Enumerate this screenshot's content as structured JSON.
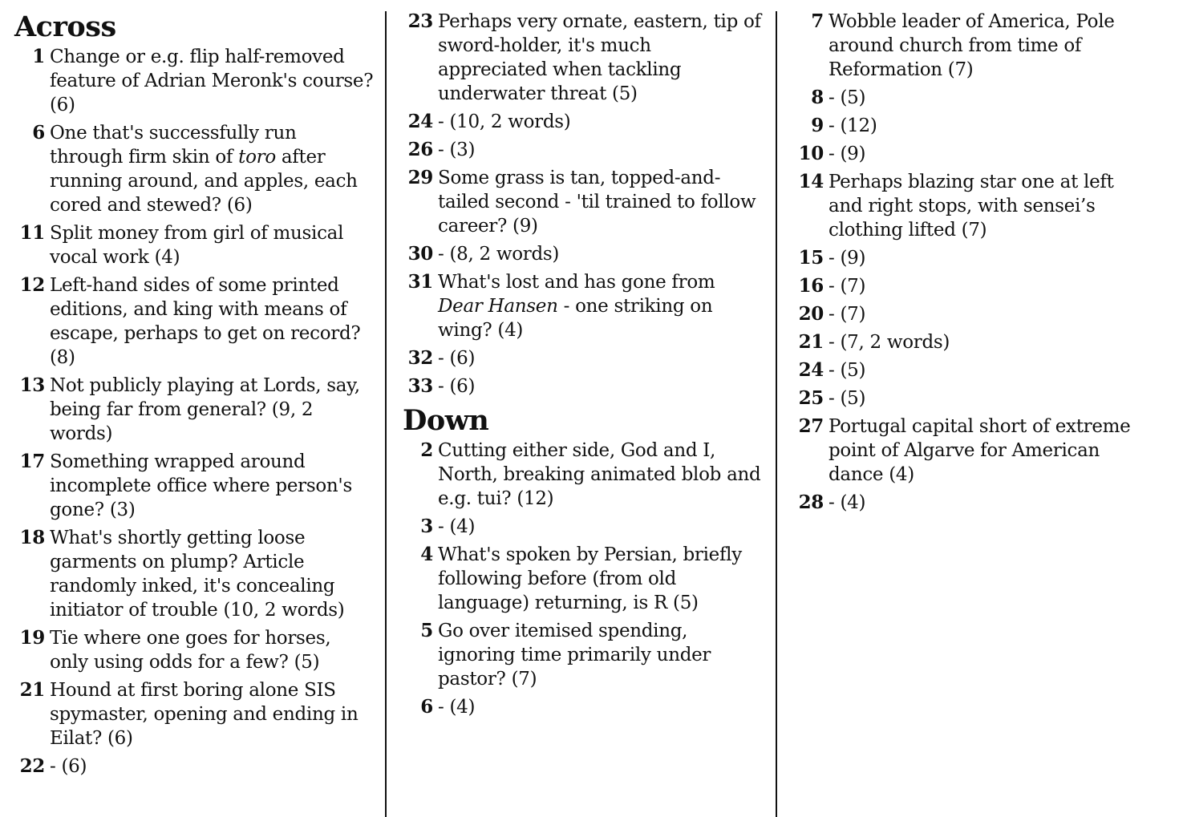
{
  "across": {
    "heading": "Across",
    "clues": [
      {
        "num": "1",
        "parts": [
          {
            "t": "Change or e.g. flip half-removed feature of Adrian Meronk's course? (6)"
          }
        ]
      },
      {
        "num": "6",
        "parts": [
          {
            "t": "One that's successfully run through firm skin of "
          },
          {
            "t": "toro",
            "i": true
          },
          {
            "t": " after running around, and apples, each cored and stewed? (6)"
          }
        ]
      },
      {
        "num": "11",
        "parts": [
          {
            "t": "Split money from girl of musical vocal work (4)"
          }
        ]
      },
      {
        "num": "12",
        "parts": [
          {
            "t": "Left-hand sides of some printed editions, and king with means of escape, perhaps to get on record? (8)"
          }
        ]
      },
      {
        "num": "13",
        "parts": [
          {
            "t": "Not publicly playing at Lords, say, being far from general? (9, 2 words)"
          }
        ]
      },
      {
        "num": "17",
        "parts": [
          {
            "t": "Something wrapped around incomplete office where person's gone? (3)"
          }
        ]
      },
      {
        "num": "18",
        "parts": [
          {
            "t": "What's shortly getting loose garments on plump? Article randomly inked, it's concealing initiator of trouble (10, 2 words)"
          }
        ]
      },
      {
        "num": "19",
        "parts": [
          {
            "t": "Tie where one goes for horses, only using odds for a few? (5)"
          }
        ]
      },
      {
        "num": "21",
        "parts": [
          {
            "t": "Hound at first boring alone SIS spymaster, opening and ending in Eilat? (6)"
          }
        ]
      },
      {
        "num": "22",
        "parts": [
          {
            "t": "- (6)"
          }
        ]
      },
      {
        "num": "23",
        "parts": [
          {
            "t": "Perhaps very ornate, eastern, tip of sword-holder, it's much appreciated when tackling underwater threat (5)"
          }
        ]
      },
      {
        "num": "24",
        "parts": [
          {
            "t": "- (10, 2 words)"
          }
        ]
      },
      {
        "num": "26",
        "parts": [
          {
            "t": "- (3)"
          }
        ]
      },
      {
        "num": "29",
        "parts": [
          {
            "t": "Some grass is tan, topped-and-tailed second - 'til trained to follow career? (9)"
          }
        ]
      },
      {
        "num": "30",
        "parts": [
          {
            "t": "- (8, 2 words)"
          }
        ]
      },
      {
        "num": "31",
        "parts": [
          {
            "t": "What's lost and has gone from "
          },
          {
            "t": "Dear Hansen",
            "i": true
          },
          {
            "t": " - one striking on wing? (4)"
          }
        ]
      },
      {
        "num": "32",
        "parts": [
          {
            "t": "- (6)"
          }
        ]
      },
      {
        "num": "33",
        "parts": [
          {
            "t": "- (6)"
          }
        ]
      }
    ]
  },
  "down": {
    "heading": "Down",
    "clues": [
      {
        "num": "2",
        "parts": [
          {
            "t": "Cutting either side, God and I, North, breaking animated blob and e.g. tui? (12)"
          }
        ]
      },
      {
        "num": "3",
        "parts": [
          {
            "t": "- (4)"
          }
        ]
      },
      {
        "num": "4",
        "parts": [
          {
            "t": "What's spoken by Persian, briefly following before (from old language) returning, is R (5)"
          }
        ]
      },
      {
        "num": "5",
        "parts": [
          {
            "t": "Go over itemised spending, ignoring time primarily under pastor? (7)"
          }
        ]
      },
      {
        "num": "6",
        "parts": [
          {
            "t": "- (4)"
          }
        ]
      },
      {
        "num": "7",
        "parts": [
          {
            "t": "Wobble leader of America, Pole around church from time of Reformation (7)"
          }
        ]
      },
      {
        "num": "8",
        "parts": [
          {
            "t": "- (5)"
          }
        ]
      },
      {
        "num": "9",
        "parts": [
          {
            "t": "- (12)"
          }
        ]
      },
      {
        "num": "10",
        "parts": [
          {
            "t": "- (9)"
          }
        ]
      },
      {
        "num": "14",
        "parts": [
          {
            "t": "Perhaps blazing star one at left and right stops, with sensei’s clothing lifted (7)"
          }
        ]
      },
      {
        "num": "15",
        "parts": [
          {
            "t": "- (9)"
          }
        ]
      },
      {
        "num": "16",
        "parts": [
          {
            "t": "- (7)"
          }
        ]
      },
      {
        "num": "20",
        "parts": [
          {
            "t": "- (7)"
          }
        ]
      },
      {
        "num": "21",
        "parts": [
          {
            "t": "- (7, 2 words)"
          }
        ]
      },
      {
        "num": "24",
        "parts": [
          {
            "t": "- (5)"
          }
        ]
      },
      {
        "num": "25",
        "parts": [
          {
            "t": "- (5)"
          }
        ]
      },
      {
        "num": "27",
        "parts": [
          {
            "t": "Portugal capital short of extreme point of Algarve for American dance (4)"
          }
        ]
      },
      {
        "num": "28",
        "parts": [
          {
            "t": "- (4)"
          }
        ]
      }
    ]
  }
}
